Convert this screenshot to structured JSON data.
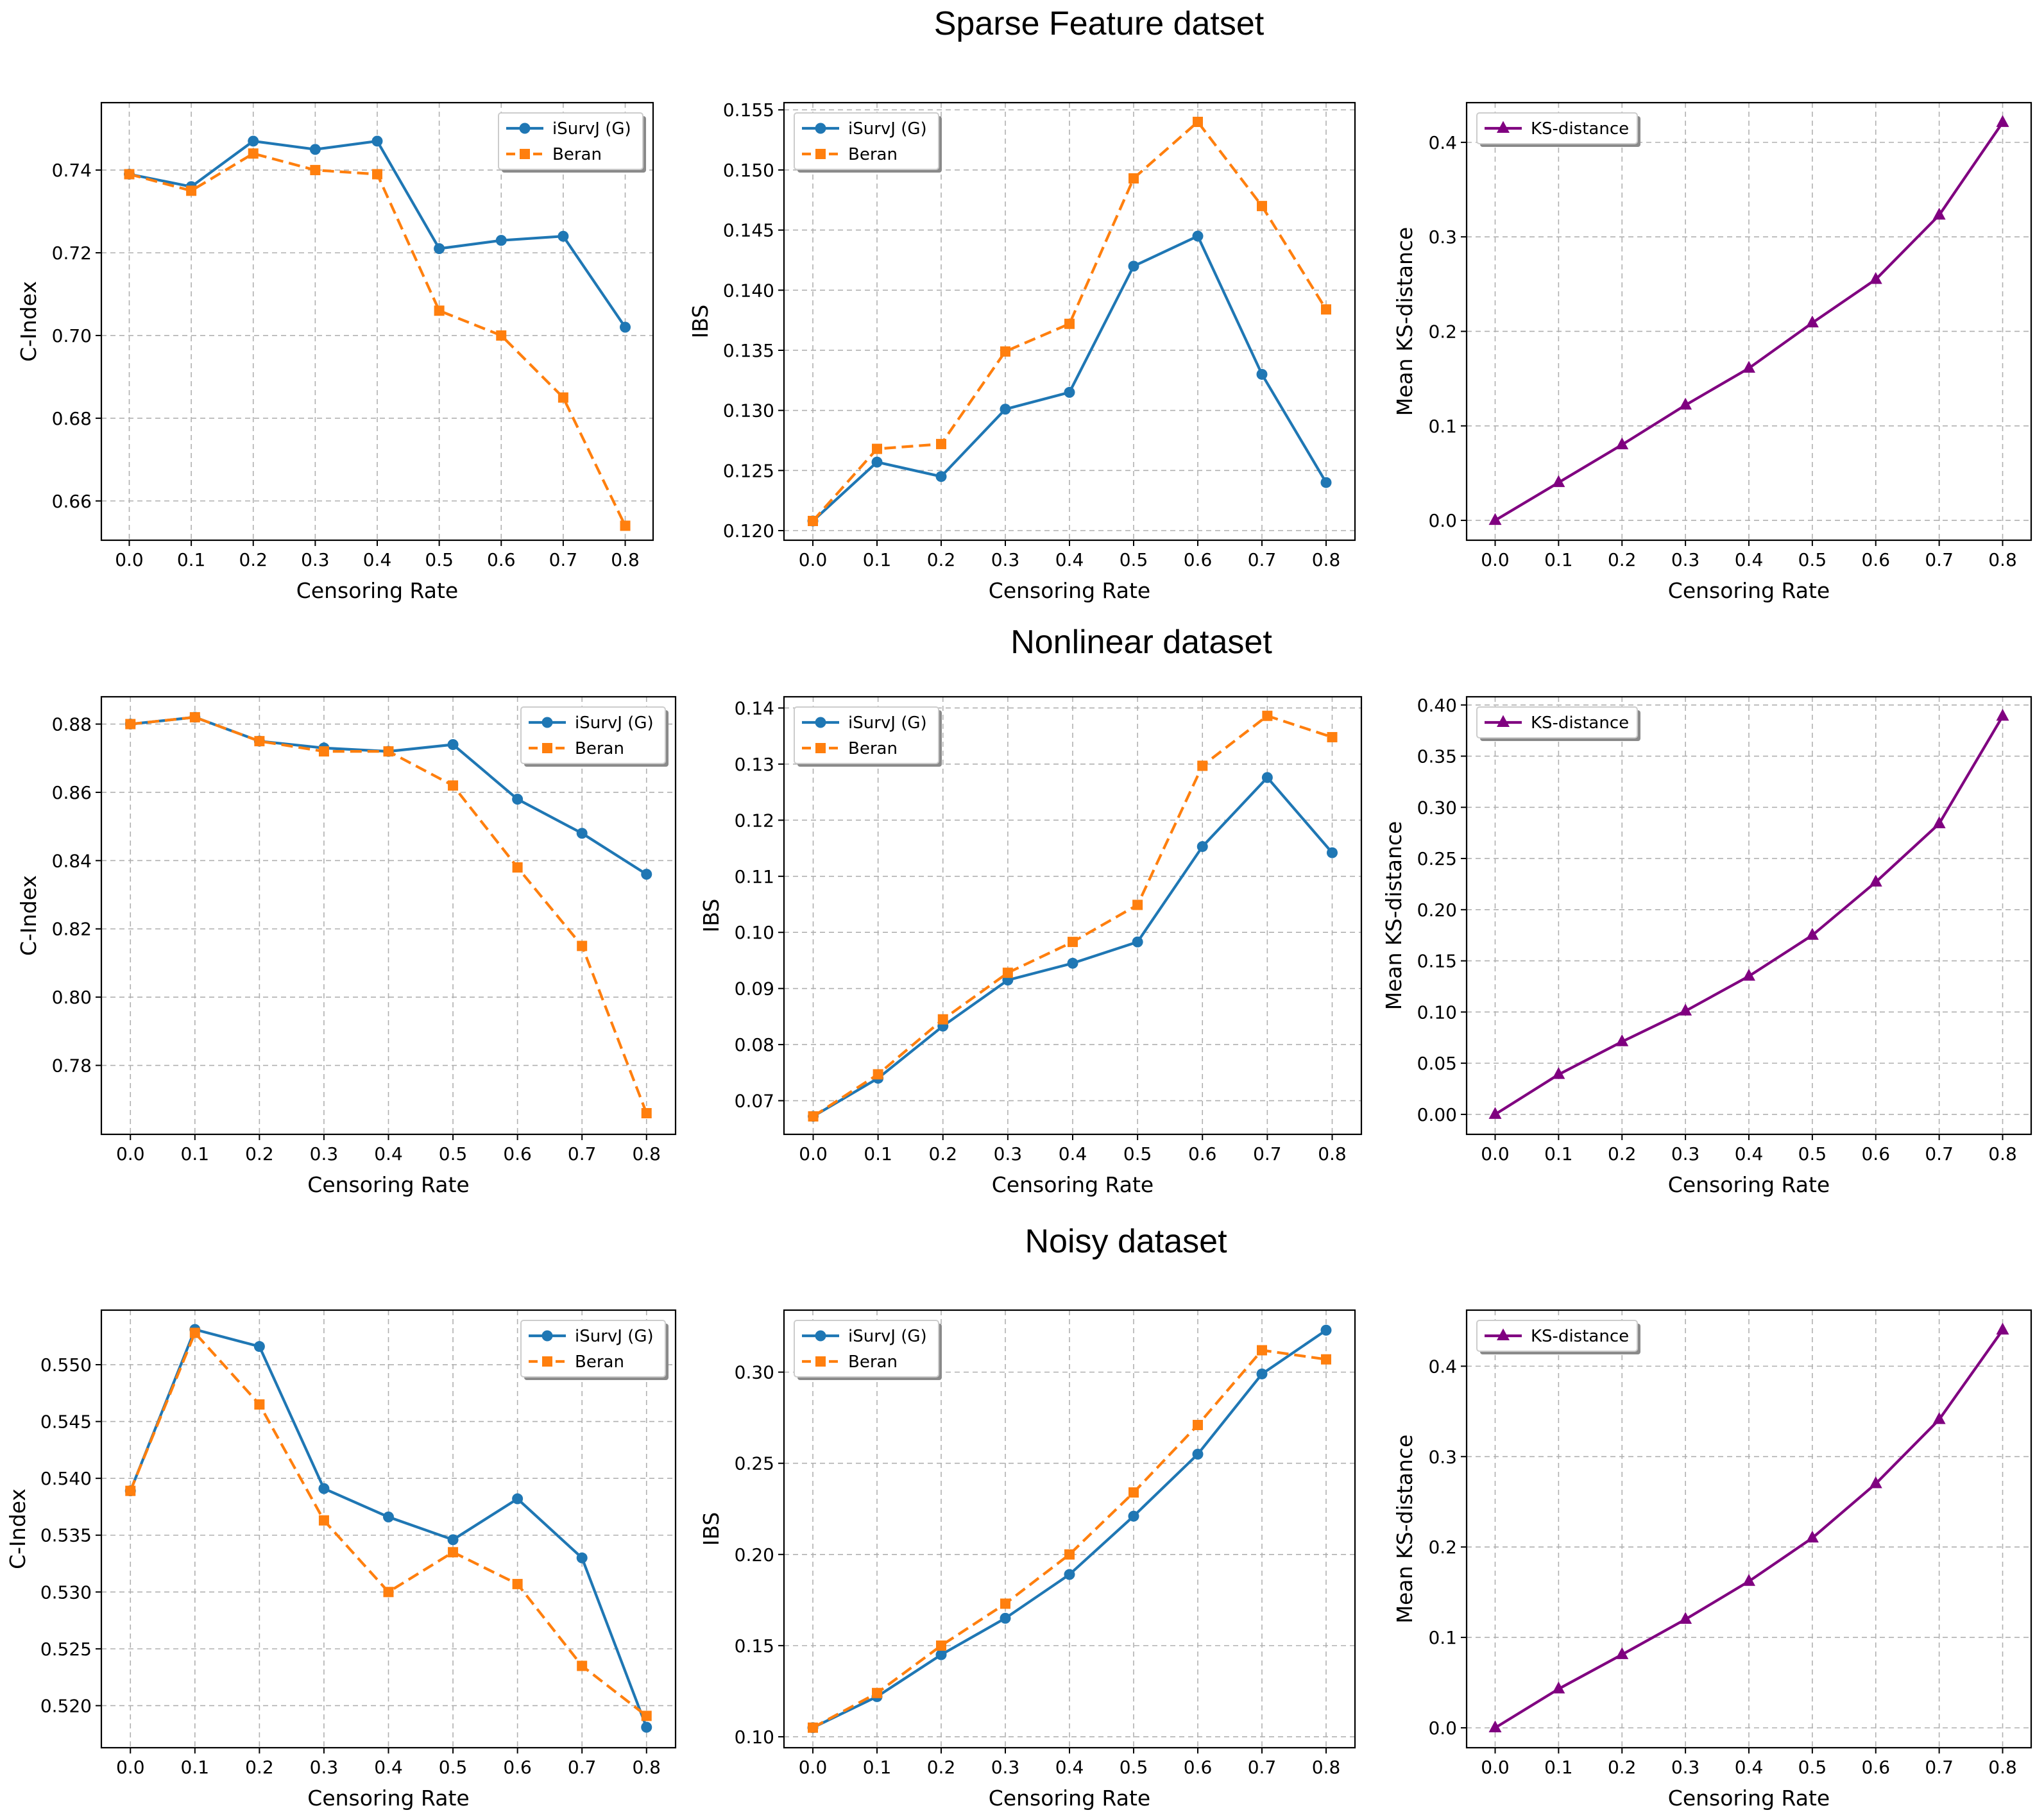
{
  "titles": [
    "Sparse Feature datset",
    "Nonlinear dataset",
    "Noisy dataset"
  ],
  "colors": {
    "isurvj": "#1f77b4",
    "beran": "#ff7f0e",
    "ks": "#800080"
  },
  "chart_data": [
    {
      "id": "sparse-cindex",
      "type": "line",
      "xlabel": "Censoring Rate",
      "ylabel": "C-Index",
      "x": [
        0.0,
        0.1,
        0.2,
        0.3,
        0.4,
        0.5,
        0.6,
        0.7,
        0.8
      ],
      "xticks": [
        "0.0",
        "0.1",
        "0.2",
        "0.3",
        "0.4",
        "0.5",
        "0.6",
        "0.7",
        "0.8"
      ],
      "xlim": [
        -0.045,
        0.845
      ],
      "ylim": [
        0.6505,
        0.7563
      ],
      "yticks": [
        0.66,
        0.68,
        0.7,
        0.72,
        0.74
      ],
      "ytick_labels": [
        "0.66",
        "0.68",
        "0.70",
        "0.72",
        "0.74"
      ],
      "legend_loc": "upper-right",
      "series": [
        {
          "name": "iSurvJ (G)",
          "color": "#1f77b4",
          "marker": "circle",
          "dash": false,
          "values": [
            0.739,
            0.736,
            0.747,
            0.745,
            0.747,
            0.721,
            0.723,
            0.724,
            0.702
          ]
        },
        {
          "name": "Beran",
          "color": "#ff7f0e",
          "marker": "square",
          "dash": true,
          "values": [
            0.739,
            0.735,
            0.744,
            0.74,
            0.739,
            0.706,
            0.7,
            0.685,
            0.654
          ]
        }
      ]
    },
    {
      "id": "sparse-ibs",
      "type": "line",
      "xlabel": "Censoring Rate",
      "ylabel": "IBS",
      "x": [
        0.0,
        0.1,
        0.2,
        0.3,
        0.4,
        0.5,
        0.6,
        0.7,
        0.8
      ],
      "xticks": [
        "0.0",
        "0.1",
        "0.2",
        "0.3",
        "0.4",
        "0.5",
        "0.6",
        "0.7",
        "0.8"
      ],
      "xlim": [
        -0.045,
        0.845
      ],
      "ylim": [
        0.1192,
        0.1556
      ],
      "yticks": [
        0.12,
        0.125,
        0.13,
        0.135,
        0.14,
        0.145,
        0.15,
        0.155
      ],
      "ytick_labels": [
        "0.120",
        "0.125",
        "0.130",
        "0.135",
        "0.140",
        "0.145",
        "0.150",
        "0.155"
      ],
      "legend_loc": "upper-left",
      "series": [
        {
          "name": "iSurvJ (G)",
          "color": "#1f77b4",
          "marker": "circle",
          "dash": false,
          "values": [
            0.1208,
            0.1257,
            0.1245,
            0.1301,
            0.1315,
            0.142,
            0.1445,
            0.133,
            0.124
          ]
        },
        {
          "name": "Beran",
          "color": "#ff7f0e",
          "marker": "square",
          "dash": true,
          "values": [
            0.1208,
            0.1268,
            0.1272,
            0.1349,
            0.1372,
            0.1493,
            0.154,
            0.147,
            0.1384
          ]
        }
      ]
    },
    {
      "id": "sparse-ks",
      "type": "line",
      "xlabel": "Censoring Rate",
      "ylabel": "Mean KS-distance",
      "x": [
        0.0,
        0.1,
        0.2,
        0.3,
        0.4,
        0.5,
        0.6,
        0.7,
        0.8
      ],
      "xticks": [
        "0.0",
        "0.1",
        "0.2",
        "0.3",
        "0.4",
        "0.5",
        "0.6",
        "0.7",
        "0.8"
      ],
      "xlim": [
        -0.045,
        0.845
      ],
      "ylim": [
        -0.021,
        0.442
      ],
      "yticks": [
        0.0,
        0.1,
        0.2,
        0.3,
        0.4
      ],
      "ytick_labels": [
        "0.0",
        "0.1",
        "0.2",
        "0.3",
        "0.4"
      ],
      "legend_loc": "upper-left",
      "series": [
        {
          "name": "KS-distance",
          "color": "#800080",
          "marker": "triangle",
          "dash": false,
          "values": [
            0.0,
            0.04,
            0.08,
            0.122,
            0.161,
            0.209,
            0.255,
            0.323,
            0.421
          ]
        }
      ]
    },
    {
      "id": "nonlinear-cindex",
      "type": "line",
      "xlabel": "Censoring Rate",
      "ylabel": "C-Index",
      "x": [
        0.0,
        0.1,
        0.2,
        0.3,
        0.4,
        0.5,
        0.6,
        0.7,
        0.8
      ],
      "xticks": [
        "0.0",
        "0.1",
        "0.2",
        "0.3",
        "0.4",
        "0.5",
        "0.6",
        "0.7",
        "0.8"
      ],
      "xlim": [
        -0.045,
        0.845
      ],
      "ylim": [
        0.7598,
        0.888
      ],
      "yticks": [
        0.78,
        0.8,
        0.82,
        0.84,
        0.86,
        0.88
      ],
      "ytick_labels": [
        "0.78",
        "0.80",
        "0.82",
        "0.84",
        "0.86",
        "0.88"
      ],
      "legend_loc": "upper-right",
      "series": [
        {
          "name": "iSurvJ (G)",
          "color": "#1f77b4",
          "marker": "circle",
          "dash": false,
          "values": [
            0.88,
            0.882,
            0.875,
            0.873,
            0.872,
            0.874,
            0.858,
            0.848,
            0.836
          ]
        },
        {
          "name": "Beran",
          "color": "#ff7f0e",
          "marker": "square",
          "dash": true,
          "values": [
            0.88,
            0.882,
            0.875,
            0.872,
            0.872,
            0.862,
            0.838,
            0.815,
            0.766
          ]
        }
      ]
    },
    {
      "id": "nonlinear-ibs",
      "type": "line",
      "xlabel": "Censoring Rate",
      "ylabel": "IBS",
      "x": [
        0.0,
        0.1,
        0.2,
        0.3,
        0.4,
        0.5,
        0.6,
        0.7,
        0.8
      ],
      "xticks": [
        "0.0",
        "0.1",
        "0.2",
        "0.3",
        "0.4",
        "0.5",
        "0.6",
        "0.7",
        "0.8"
      ],
      "xlim": [
        -0.045,
        0.845
      ],
      "ylim": [
        0.064,
        0.142
      ],
      "yticks": [
        0.07,
        0.08,
        0.09,
        0.1,
        0.11,
        0.12,
        0.13,
        0.14
      ],
      "ytick_labels": [
        "0.07",
        "0.08",
        "0.09",
        "0.10",
        "0.11",
        "0.12",
        "0.13",
        "0.14"
      ],
      "legend_loc": "upper-left",
      "series": [
        {
          "name": "iSurvJ (G)",
          "color": "#1f77b4",
          "marker": "circle",
          "dash": false,
          "values": [
            0.0672,
            0.074,
            0.0833,
            0.0915,
            0.0945,
            0.0983,
            0.1153,
            0.1276,
            0.1142
          ]
        },
        {
          "name": "Beran",
          "color": "#ff7f0e",
          "marker": "square",
          "dash": true,
          "values": [
            0.0672,
            0.0747,
            0.0845,
            0.0928,
            0.0983,
            0.1049,
            0.1297,
            0.1386,
            0.1348
          ]
        }
      ]
    },
    {
      "id": "nonlinear-ks",
      "type": "line",
      "xlabel": "Censoring Rate",
      "ylabel": "Mean KS-distance",
      "x": [
        0.0,
        0.1,
        0.2,
        0.3,
        0.4,
        0.5,
        0.6,
        0.7,
        0.8
      ],
      "xticks": [
        "0.0",
        "0.1",
        "0.2",
        "0.3",
        "0.4",
        "0.5",
        "0.6",
        "0.7",
        "0.8"
      ],
      "xlim": [
        -0.045,
        0.845
      ],
      "ylim": [
        -0.0195,
        0.408
      ],
      "yticks": [
        0.0,
        0.05,
        0.1,
        0.15,
        0.2,
        0.25,
        0.3,
        0.35,
        0.4
      ],
      "ytick_labels": [
        "0.00",
        "0.05",
        "0.10",
        "0.15",
        "0.20",
        "0.25",
        "0.30",
        "0.35",
        "0.40"
      ],
      "legend_loc": "upper-left",
      "series": [
        {
          "name": "KS-distance",
          "color": "#800080",
          "marker": "triangle",
          "dash": false,
          "values": [
            0.0,
            0.039,
            0.071,
            0.101,
            0.135,
            0.175,
            0.227,
            0.284,
            0.389
          ]
        }
      ]
    },
    {
      "id": "noisy-cindex",
      "type": "line",
      "xlabel": "Censoring Rate",
      "ylabel": "C-Index",
      "x": [
        0.0,
        0.1,
        0.2,
        0.3,
        0.4,
        0.5,
        0.6,
        0.7,
        0.8
      ],
      "xticks": [
        "0.0",
        "0.1",
        "0.2",
        "0.3",
        "0.4",
        "0.5",
        "0.6",
        "0.7",
        "0.8"
      ],
      "xlim": [
        -0.045,
        0.845
      ],
      "ylim": [
        0.5163,
        0.5548
      ],
      "yticks": [
        0.52,
        0.525,
        0.53,
        0.535,
        0.54,
        0.545,
        0.55
      ],
      "ytick_labels": [
        "0.520",
        "0.525",
        "0.530",
        "0.535",
        "0.540",
        "0.545",
        "0.550"
      ],
      "legend_loc": "upper-right",
      "series": [
        {
          "name": "iSurvJ (G)",
          "color": "#1f77b4",
          "marker": "circle",
          "dash": false,
          "values": [
            0.5389,
            0.5531,
            0.5516,
            0.5391,
            0.5366,
            0.5346,
            0.5382,
            0.533,
            0.5181
          ]
        },
        {
          "name": "Beran",
          "color": "#ff7f0e",
          "marker": "square",
          "dash": true,
          "values": [
            0.5389,
            0.5528,
            0.5465,
            0.5363,
            0.53,
            0.5335,
            0.5307,
            0.5235,
            0.5191
          ]
        }
      ]
    },
    {
      "id": "noisy-ibs",
      "type": "line",
      "xlabel": "Censoring Rate",
      "ylabel": "IBS",
      "x": [
        0.0,
        0.1,
        0.2,
        0.3,
        0.4,
        0.5,
        0.6,
        0.7,
        0.8
      ],
      "xticks": [
        "0.0",
        "0.1",
        "0.2",
        "0.3",
        "0.4",
        "0.5",
        "0.6",
        "0.7",
        "0.8"
      ],
      "xlim": [
        -0.045,
        0.845
      ],
      "ylim": [
        0.094,
        0.334
      ],
      "yticks": [
        0.1,
        0.15,
        0.2,
        0.25,
        0.3
      ],
      "ytick_labels": [
        "0.10",
        "0.15",
        "0.20",
        "0.25",
        "0.30"
      ],
      "legend_loc": "upper-left",
      "series": [
        {
          "name": "iSurvJ (G)",
          "color": "#1f77b4",
          "marker": "circle",
          "dash": false,
          "values": [
            0.105,
            0.122,
            0.145,
            0.165,
            0.189,
            0.221,
            0.255,
            0.299,
            0.323
          ]
        },
        {
          "name": "Beran",
          "color": "#ff7f0e",
          "marker": "square",
          "dash": true,
          "values": [
            0.105,
            0.124,
            0.15,
            0.173,
            0.2,
            0.234,
            0.271,
            0.312,
            0.307
          ]
        }
      ]
    },
    {
      "id": "noisy-ks",
      "type": "line",
      "xlabel": "Censoring Rate",
      "ylabel": "Mean KS-distance",
      "x": [
        0.0,
        0.1,
        0.2,
        0.3,
        0.4,
        0.5,
        0.6,
        0.7,
        0.8
      ],
      "xticks": [
        "0.0",
        "0.1",
        "0.2",
        "0.3",
        "0.4",
        "0.5",
        "0.6",
        "0.7",
        "0.8"
      ],
      "xlim": [
        -0.045,
        0.845
      ],
      "ylim": [
        -0.022,
        0.462
      ],
      "yticks": [
        0.0,
        0.1,
        0.2,
        0.3,
        0.4
      ],
      "ytick_labels": [
        "0.0",
        "0.1",
        "0.2",
        "0.3",
        "0.4"
      ],
      "legend_loc": "upper-left",
      "series": [
        {
          "name": "KS-distance",
          "color": "#800080",
          "marker": "triangle",
          "dash": false,
          "values": [
            0.0,
            0.043,
            0.081,
            0.12,
            0.162,
            0.21,
            0.27,
            0.341,
            0.44
          ]
        }
      ]
    }
  ]
}
